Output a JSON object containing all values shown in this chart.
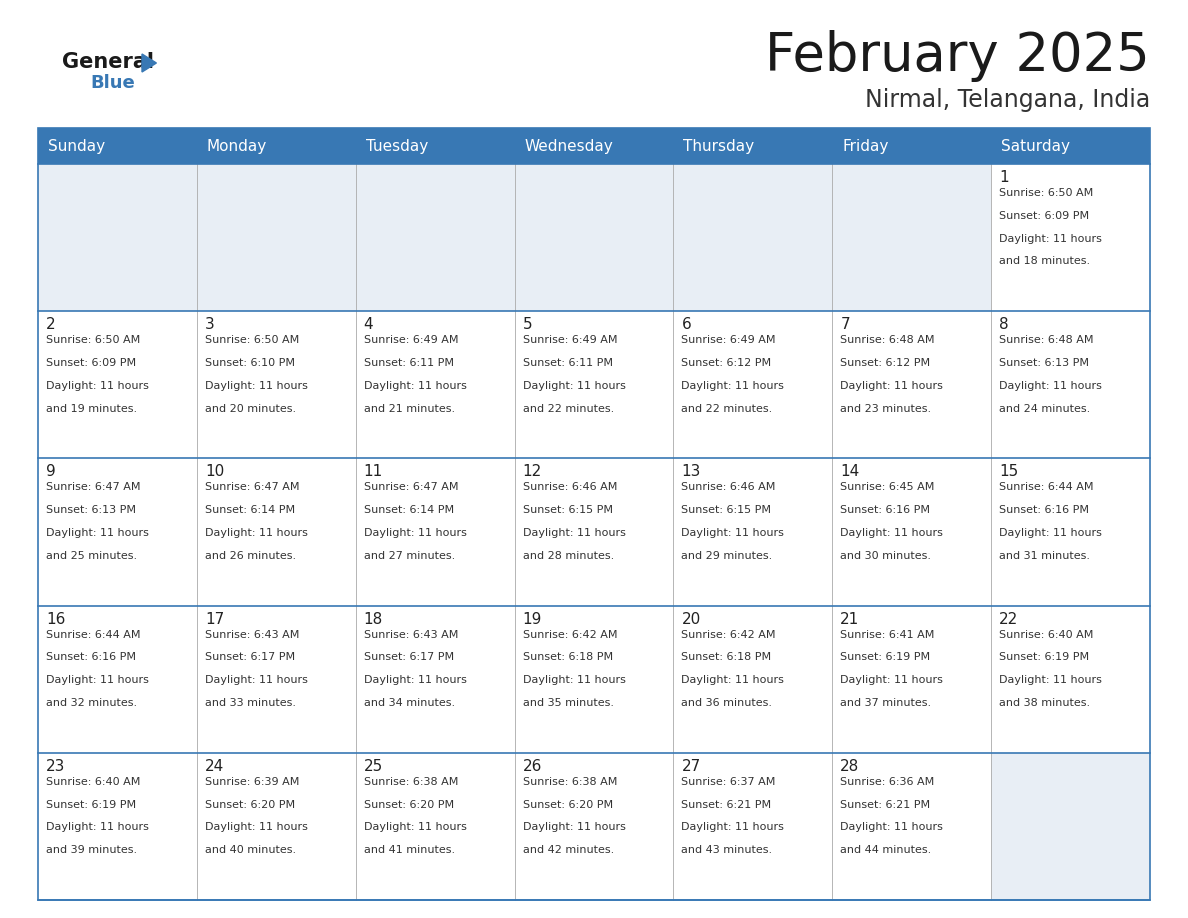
{
  "title": "February 2025",
  "subtitle": "Nirmal, Telangana, India",
  "header_color": "#3878b4",
  "header_text_color": "#ffffff",
  "cell_bg_light": "#e8eef5",
  "cell_bg_white": "#ffffff",
  "border_color": "#3878b4",
  "text_color": "#333333",
  "day_num_color": "#222222",
  "days_of_week": [
    "Sunday",
    "Monday",
    "Tuesday",
    "Wednesday",
    "Thursday",
    "Friday",
    "Saturday"
  ],
  "logo_general_color": "#1a1a1a",
  "logo_blue_color": "#3878b4",
  "title_color": "#1a1a1a",
  "subtitle_color": "#333333",
  "calendar_data": [
    [
      null,
      null,
      null,
      null,
      null,
      null,
      {
        "day": 1,
        "sunrise": "6:50 AM",
        "sunset": "6:09 PM",
        "daylight_hours": 11,
        "daylight_minutes": 18
      }
    ],
    [
      {
        "day": 2,
        "sunrise": "6:50 AM",
        "sunset": "6:09 PM",
        "daylight_hours": 11,
        "daylight_minutes": 19
      },
      {
        "day": 3,
        "sunrise": "6:50 AM",
        "sunset": "6:10 PM",
        "daylight_hours": 11,
        "daylight_minutes": 20
      },
      {
        "day": 4,
        "sunrise": "6:49 AM",
        "sunset": "6:11 PM",
        "daylight_hours": 11,
        "daylight_minutes": 21
      },
      {
        "day": 5,
        "sunrise": "6:49 AM",
        "sunset": "6:11 PM",
        "daylight_hours": 11,
        "daylight_minutes": 22
      },
      {
        "day": 6,
        "sunrise": "6:49 AM",
        "sunset": "6:12 PM",
        "daylight_hours": 11,
        "daylight_minutes": 22
      },
      {
        "day": 7,
        "sunrise": "6:48 AM",
        "sunset": "6:12 PM",
        "daylight_hours": 11,
        "daylight_minutes": 23
      },
      {
        "day": 8,
        "sunrise": "6:48 AM",
        "sunset": "6:13 PM",
        "daylight_hours": 11,
        "daylight_minutes": 24
      }
    ],
    [
      {
        "day": 9,
        "sunrise": "6:47 AM",
        "sunset": "6:13 PM",
        "daylight_hours": 11,
        "daylight_minutes": 25
      },
      {
        "day": 10,
        "sunrise": "6:47 AM",
        "sunset": "6:14 PM",
        "daylight_hours": 11,
        "daylight_minutes": 26
      },
      {
        "day": 11,
        "sunrise": "6:47 AM",
        "sunset": "6:14 PM",
        "daylight_hours": 11,
        "daylight_minutes": 27
      },
      {
        "day": 12,
        "sunrise": "6:46 AM",
        "sunset": "6:15 PM",
        "daylight_hours": 11,
        "daylight_minutes": 28
      },
      {
        "day": 13,
        "sunrise": "6:46 AM",
        "sunset": "6:15 PM",
        "daylight_hours": 11,
        "daylight_minutes": 29
      },
      {
        "day": 14,
        "sunrise": "6:45 AM",
        "sunset": "6:16 PM",
        "daylight_hours": 11,
        "daylight_minutes": 30
      },
      {
        "day": 15,
        "sunrise": "6:44 AM",
        "sunset": "6:16 PM",
        "daylight_hours": 11,
        "daylight_minutes": 31
      }
    ],
    [
      {
        "day": 16,
        "sunrise": "6:44 AM",
        "sunset": "6:16 PM",
        "daylight_hours": 11,
        "daylight_minutes": 32
      },
      {
        "day": 17,
        "sunrise": "6:43 AM",
        "sunset": "6:17 PM",
        "daylight_hours": 11,
        "daylight_minutes": 33
      },
      {
        "day": 18,
        "sunrise": "6:43 AM",
        "sunset": "6:17 PM",
        "daylight_hours": 11,
        "daylight_minutes": 34
      },
      {
        "day": 19,
        "sunrise": "6:42 AM",
        "sunset": "6:18 PM",
        "daylight_hours": 11,
        "daylight_minutes": 35
      },
      {
        "day": 20,
        "sunrise": "6:42 AM",
        "sunset": "6:18 PM",
        "daylight_hours": 11,
        "daylight_minutes": 36
      },
      {
        "day": 21,
        "sunrise": "6:41 AM",
        "sunset": "6:19 PM",
        "daylight_hours": 11,
        "daylight_minutes": 37
      },
      {
        "day": 22,
        "sunrise": "6:40 AM",
        "sunset": "6:19 PM",
        "daylight_hours": 11,
        "daylight_minutes": 38
      }
    ],
    [
      {
        "day": 23,
        "sunrise": "6:40 AM",
        "sunset": "6:19 PM",
        "daylight_hours": 11,
        "daylight_minutes": 39
      },
      {
        "day": 24,
        "sunrise": "6:39 AM",
        "sunset": "6:20 PM",
        "daylight_hours": 11,
        "daylight_minutes": 40
      },
      {
        "day": 25,
        "sunrise": "6:38 AM",
        "sunset": "6:20 PM",
        "daylight_hours": 11,
        "daylight_minutes": 41
      },
      {
        "day": 26,
        "sunrise": "6:38 AM",
        "sunset": "6:20 PM",
        "daylight_hours": 11,
        "daylight_minutes": 42
      },
      {
        "day": 27,
        "sunrise": "6:37 AM",
        "sunset": "6:21 PM",
        "daylight_hours": 11,
        "daylight_minutes": 43
      },
      {
        "day": 28,
        "sunrise": "6:36 AM",
        "sunset": "6:21 PM",
        "daylight_hours": 11,
        "daylight_minutes": 44
      },
      null
    ]
  ]
}
